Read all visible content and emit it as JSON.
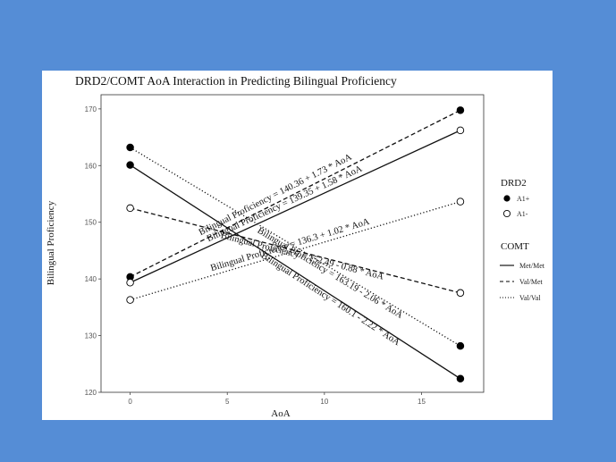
{
  "colors": {
    "background": "#558dd6",
    "panel": "#ffffff",
    "ink": "#111111"
  },
  "chart_data": {
    "type": "line",
    "title": "DRD2/COMT AoA Interaction in Predicting Bilingual Proficiency",
    "xlabel": "AoA",
    "ylabel": "Bilingual Proficiency",
    "xlim": [
      -1.5,
      18.2
    ],
    "ylim": [
      120,
      172.5
    ],
    "xticks": [
      0,
      5,
      10,
      15
    ],
    "yticks": [
      120,
      130,
      140,
      150,
      160,
      170
    ],
    "grid": false,
    "legend_position": "right",
    "legend": {
      "drd2": {
        "title": "DRD2",
        "items": [
          {
            "label": "A1+",
            "marker": "filled"
          },
          {
            "label": "A1-",
            "marker": "open"
          }
        ]
      },
      "comt": {
        "title": "COMT",
        "items": [
          {
            "label": "Met/Met",
            "linetype": "solid"
          },
          {
            "label": "Val/Met",
            "linetype": "dashed"
          },
          {
            "label": "Val/Val",
            "linetype": "dotted"
          }
        ]
      }
    },
    "series": [
      {
        "drd2": "A1+",
        "comt": "Met/Met",
        "linetype": "solid",
        "marker": "filled",
        "x": [
          0,
          17
        ],
        "y": [
          160.1,
          122.4
        ],
        "equation": "Bilingual Proficiency = 160.1 - 2.22 * AoA"
      },
      {
        "drd2": "A1+",
        "comt": "Val/Met",
        "linetype": "dashed",
        "marker": "filled",
        "x": [
          0,
          17
        ],
        "y": [
          140.36,
          169.77
        ],
        "equation": "Bilingual Proficiency = 140.36 + 1.73 * AoA"
      },
      {
        "drd2": "A1+",
        "comt": "Val/Val",
        "linetype": "dotted",
        "marker": "filled",
        "x": [
          0,
          17
        ],
        "y": [
          163.19,
          128.17
        ],
        "equation": "Bilingual Proficiency = 163.19 - 2.06 * AoA"
      },
      {
        "drd2": "A1-",
        "comt": "Met/Met",
        "linetype": "solid",
        "marker": "open",
        "x": [
          0,
          17
        ],
        "y": [
          139.35,
          166.21
        ],
        "equation": "Bilingual Proficiency = 139.35 + 1.58 * AoA"
      },
      {
        "drd2": "A1-",
        "comt": "Val/Met",
        "linetype": "dashed",
        "marker": "open",
        "x": [
          0,
          17
        ],
        "y": [
          152.49,
          137.53
        ],
        "equation": "Bilingual Proficiency = 152.49 - 0.88 * AoA"
      },
      {
        "drd2": "A1-",
        "comt": "Val/Val",
        "linetype": "dotted",
        "marker": "open",
        "x": [
          0,
          17
        ],
        "y": [
          136.3,
          153.64
        ],
        "equation": "Bilingual Proficiency = 136.3 + 1.02 * AoA"
      }
    ]
  }
}
